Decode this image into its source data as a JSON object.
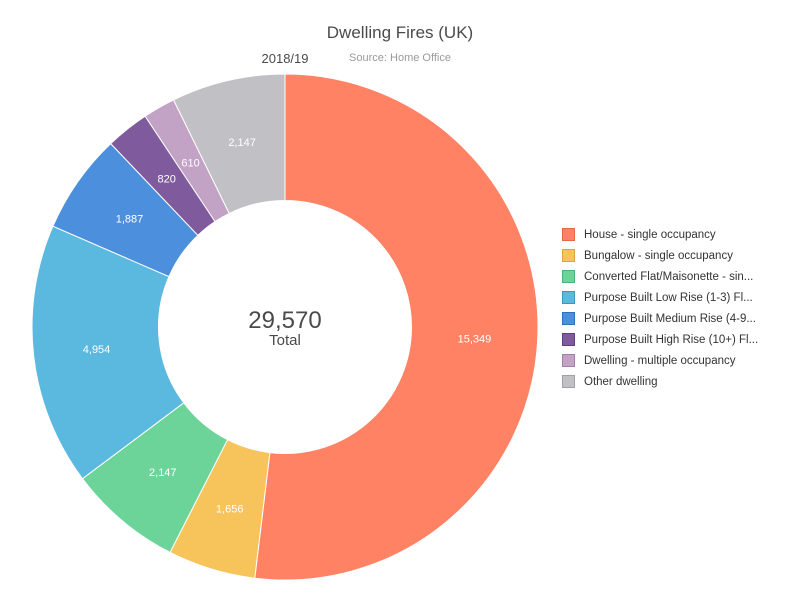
{
  "chart_data": {
    "type": "pie",
    "title": "Dwelling Fires (UK)",
    "subtitle": "Source: Home Office",
    "period_label": "2018/19",
    "center": {
      "value": "29,570",
      "label": "Total"
    },
    "series": [
      {
        "name": "2018/19",
        "slices": [
          {
            "label": "House - single occupancy",
            "legend_label": "House - single occupancy",
            "value": 15349,
            "display": "15,349",
            "color": "#fe8263",
            "border": "#e8654a"
          },
          {
            "label": "Bungalow - single occupancy",
            "legend_label": "Bungalow - single occupancy",
            "value": 1656,
            "display": "1,656",
            "color": "#f7c45c",
            "border": "#d9a53c"
          },
          {
            "label": "Converted Flat/Maisonette - single",
            "legend_label": "Converted Flat/Maisonette - sin...",
            "value": 2147,
            "display": "2,147",
            "color": "#6cd498",
            "border": "#4db37a"
          },
          {
            "label": "Purpose Built Low Rise (1-3) Flats",
            "legend_label": "Purpose Built Low Rise (1-3) Fl...",
            "value": 4954,
            "display": "4,954",
            "color": "#5bb8de",
            "border": "#3c98bf"
          },
          {
            "label": "Purpose Built Medium Rise (4-9) Flats",
            "legend_label": "Purpose Built Medium Rise (4-9...",
            "value": 1887,
            "display": "1,887",
            "color": "#4c8fdc",
            "border": "#2f70bd"
          },
          {
            "label": "Purpose Built High Rise (10+) Flats",
            "legend_label": "Purpose Built High Rise (10+) Fl...",
            "value": 820,
            "display": "820",
            "color": "#7f5b9d",
            "border": "#613e80"
          },
          {
            "label": "Dwelling - multiple occupancy",
            "legend_label": "Dwelling - multiple occupancy",
            "value": 610,
            "display": "610",
            "color": "#c2a2c5",
            "border": "#a280a6"
          },
          {
            "label": "Other dwelling",
            "legend_label": "Other dwelling",
            "value": 2147,
            "display": "2,147",
            "color": "#c1c0c5",
            "border": "#a1a0a5"
          }
        ]
      }
    ],
    "legend_position": "right",
    "inner_radius_ratio": 0.5
  }
}
